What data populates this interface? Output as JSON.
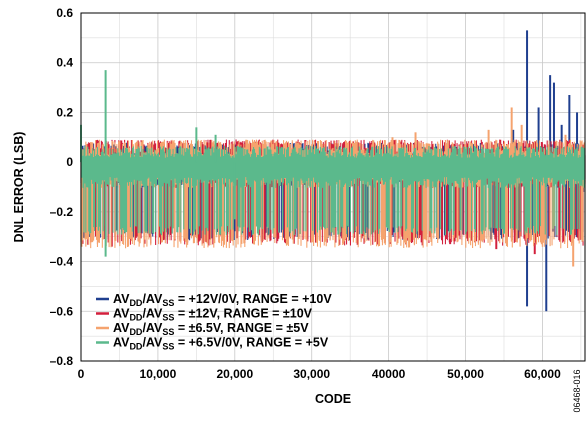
{
  "chart_data": {
    "type": "line",
    "title": "",
    "xlabel": "CODE",
    "ylabel": "DNL ERROR (LSB)",
    "xlim": [
      0,
      65535
    ],
    "ylim": [
      -0.8,
      0.6
    ],
    "grid": true,
    "legend_position": "bottom-left",
    "x_ticks": [
      "0",
      "10,000",
      "20,000",
      "30,000",
      "40000",
      "50,000",
      "60,000"
    ],
    "x_tick_values": [
      0,
      10000,
      20000,
      30000,
      40000,
      50000,
      60000
    ],
    "y_ticks": [
      "0.6",
      "0.4",
      "0.2",
      "0",
      "–0.2",
      "–0.4",
      "–0.6",
      "–0.8"
    ],
    "y_tick_values": [
      0.6,
      0.4,
      0.2,
      0,
      -0.2,
      -0.4,
      -0.6,
      -0.8
    ],
    "series": [
      {
        "legend": {
          "main": "AV",
          "sub1": "DD",
          "mid": "/AV",
          "sub2": "SS",
          "rest": " = +12V/0V, RANGE = +10V"
        },
        "color": "#1f3f8f",
        "band": [
          -0.3,
          0.06
        ],
        "spikes": [
          [
            56200,
            0.13
          ],
          [
            58000,
            0.53
          ],
          [
            58000,
            -0.58
          ],
          [
            59500,
            0.22
          ],
          [
            60500,
            -0.6
          ],
          [
            61000,
            0.35
          ],
          [
            61500,
            0.32
          ],
          [
            62500,
            0.15
          ],
          [
            63500,
            0.27
          ],
          [
            64500,
            0.2
          ],
          [
            65300,
            -0.12
          ]
        ]
      },
      {
        "legend": {
          "main": "AV",
          "sub1": "DD",
          "mid": "/AV",
          "sub2": "SS",
          "rest": " = ±12V, RANGE = ±10V"
        },
        "color": "#d21f3c",
        "band": [
          -0.32,
          0.07
        ],
        "spikes": [
          [
            4000,
            -0.34
          ],
          [
            15000,
            -0.3
          ],
          [
            28000,
            0.08
          ],
          [
            48000,
            -0.33
          ],
          [
            54000,
            -0.35
          ],
          [
            59000,
            -0.37
          ]
        ]
      },
      {
        "legend": {
          "main": "AV",
          "sub1": "DD",
          "mid": "/AV",
          "sub2": "SS",
          "rest": " = ±6.5V, RANGE = ±5V"
        },
        "color": "#f5a36e",
        "band": [
          -0.33,
          0.07
        ],
        "spikes": [
          [
            40500,
            0.1
          ],
          [
            43500,
            0.12
          ],
          [
            53000,
            0.13
          ],
          [
            56000,
            0.22
          ],
          [
            57300,
            0.15
          ],
          [
            63000,
            0.11
          ],
          [
            64000,
            -0.42
          ]
        ]
      },
      {
        "legend": {
          "main": "AV",
          "sub1": "DD",
          "mid": "/AV",
          "sub2": "SS",
          "rest": " = +6.5V/0V, RANGE = +5V"
        },
        "color": "#5bb98c",
        "band": [
          -0.28,
          0.05
        ],
        "spikes": [
          [
            0,
            0.15
          ],
          [
            3200,
            0.37
          ],
          [
            3200,
            -0.38
          ],
          [
            15000,
            0.14
          ],
          [
            17500,
            0.11
          ],
          [
            20000,
            -0.23
          ],
          [
            21000,
            -0.25
          ]
        ]
      }
    ]
  },
  "figure_id": "06468-016"
}
